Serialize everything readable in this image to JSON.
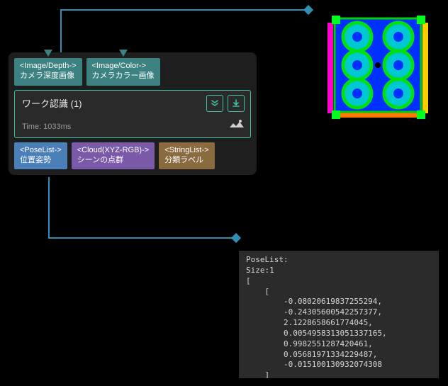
{
  "colors": {
    "accent": "#3bbfa5",
    "port_depth_bg": "#3b8280",
    "port_color_bg": "#3b8280",
    "port_pose_bg": "#4a7fb8",
    "port_cloud_bg": "#7a5aa8",
    "port_string_bg": "#8a6a3f",
    "node_border": "#3bbfa5",
    "connector": "#2e8fb5",
    "diamond": "#2e8fb5",
    "icon_border": "#3bbfa5",
    "icon_fg": "#3bbfa5",
    "eye": "#d0d0d0"
  },
  "node": {
    "title": "ワーク認識 (1)",
    "time_label": "Time: 1033ms",
    "inputs": [
      {
        "key": "depth",
        "type": "<Image/Depth->",
        "label": "カメラ深度画像",
        "color_key": "port_depth_bg"
      },
      {
        "key": "color",
        "type": "<Image/Color->",
        "label": "カメラカラー画像",
        "color_key": "port_color_bg"
      }
    ],
    "outputs": [
      {
        "key": "pose",
        "type": "<PoseList->",
        "label": "位置姿勢",
        "color_key": "port_pose_bg"
      },
      {
        "key": "cloud",
        "type": "<Cloud(XYZ-RGB)->",
        "label": "シーンの点群",
        "color_key": "port_cloud_bg"
      },
      {
        "key": "str",
        "type": "<StringList->",
        "label": "分類ラベル",
        "color_key": "port_string_bg"
      }
    ]
  },
  "pose_output": {
    "header": "PoseList:",
    "size_line": "Size:1",
    "values": [
      "-0.08020619837255294,",
      "-0.24305600542257377,",
      "2.1228658661774045,",
      "0.0054958313051337165,",
      "0.9982551287420461,",
      "0.05681971334229487,",
      "-0.015100130932074308"
    ]
  },
  "thumbnail": {
    "bg": "#000000",
    "frame_stroke": "#00d000",
    "frame_fill": "#0030ff",
    "ring_stroke": "#00e010",
    "ring_fill": "#00c8d0",
    "corner": "#00ff20",
    "side_left": "#ff00d0",
    "side_bottom": "#ff7a00",
    "side_right": "#ffcc00",
    "center_dot": "#000000"
  }
}
